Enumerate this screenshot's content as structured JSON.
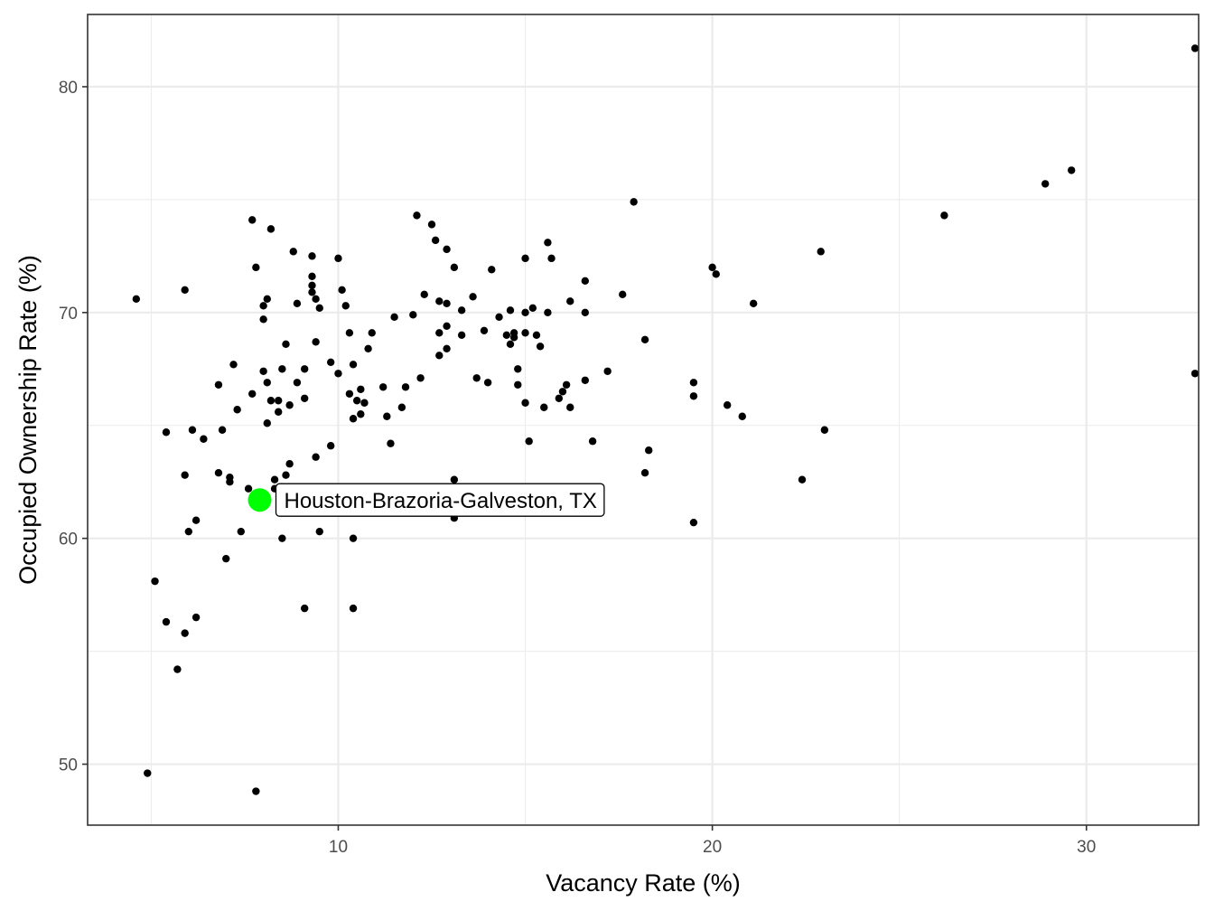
{
  "chart_data": {
    "type": "scatter",
    "xlabel": "Vacancy Rate (%)",
    "ylabel": "Occupied Ownership Rate (%)",
    "xlim": [
      3.3,
      33.0
    ],
    "ylim": [
      47.3,
      83.2
    ],
    "x_ticks": [
      10,
      20,
      30
    ],
    "y_ticks": [
      50,
      60,
      70,
      80
    ],
    "x_minor_ticks": [
      5,
      15,
      25
    ],
    "y_minor_ticks": [
      55,
      65,
      75
    ],
    "grid": true,
    "colors": {
      "point": "#000000",
      "highlight": "#00ff00",
      "grid": "#ebebeb",
      "panel_border": "#333333"
    },
    "highlight": {
      "label": "Houston-Brazoria-Galveston, TX",
      "x": 7.9,
      "y": 61.7
    },
    "points": [
      [
        4.6,
        70.6
      ],
      [
        4.9,
        49.6
      ],
      [
        5.1,
        58.1
      ],
      [
        5.4,
        56.3
      ],
      [
        5.4,
        64.7
      ],
      [
        5.7,
        54.2
      ],
      [
        5.9,
        55.8
      ],
      [
        5.9,
        62.8
      ],
      [
        5.9,
        71.0
      ],
      [
        6.0,
        60.3
      ],
      [
        6.1,
        64.8
      ],
      [
        6.2,
        60.8
      ],
      [
        6.2,
        56.5
      ],
      [
        6.4,
        64.4
      ],
      [
        6.8,
        62.9
      ],
      [
        6.8,
        66.8
      ],
      [
        6.9,
        64.8
      ],
      [
        7.0,
        59.1
      ],
      [
        7.1,
        62.7
      ],
      [
        7.1,
        62.5
      ],
      [
        7.2,
        67.7
      ],
      [
        7.3,
        65.7
      ],
      [
        7.4,
        60.3
      ],
      [
        7.6,
        62.2
      ],
      [
        7.7,
        66.4
      ],
      [
        7.7,
        74.1
      ],
      [
        7.8,
        72.0
      ],
      [
        7.8,
        48.8
      ],
      [
        8.0,
        69.7
      ],
      [
        8.0,
        70.3
      ],
      [
        8.0,
        67.4
      ],
      [
        8.1,
        70.6
      ],
      [
        8.1,
        66.9
      ],
      [
        8.1,
        65.1
      ],
      [
        8.2,
        73.7
      ],
      [
        8.2,
        66.1
      ],
      [
        8.3,
        62.6
      ],
      [
        8.3,
        62.2
      ],
      [
        8.4,
        65.6
      ],
      [
        8.4,
        66.1
      ],
      [
        8.5,
        67.5
      ],
      [
        8.5,
        60.0
      ],
      [
        8.6,
        62.8
      ],
      [
        8.6,
        68.6
      ],
      [
        8.7,
        65.9
      ],
      [
        8.7,
        63.3
      ],
      [
        8.8,
        72.7
      ],
      [
        8.9,
        70.4
      ],
      [
        8.9,
        66.9
      ],
      [
        9.1,
        67.5
      ],
      [
        9.1,
        66.2
      ],
      [
        9.1,
        56.9
      ],
      [
        9.3,
        70.9
      ],
      [
        9.3,
        71.6
      ],
      [
        9.3,
        72.5
      ],
      [
        9.3,
        71.2
      ],
      [
        9.4,
        70.6
      ],
      [
        9.4,
        68.7
      ],
      [
        9.4,
        63.6
      ],
      [
        9.5,
        70.2
      ],
      [
        9.5,
        60.3
      ],
      [
        9.8,
        67.8
      ],
      [
        9.8,
        64.1
      ],
      [
        10.0,
        72.4
      ],
      [
        10.0,
        67.3
      ],
      [
        10.1,
        71.0
      ],
      [
        10.2,
        70.3
      ],
      [
        10.3,
        69.1
      ],
      [
        10.3,
        66.4
      ],
      [
        10.4,
        67.7
      ],
      [
        10.4,
        65.3
      ],
      [
        10.4,
        60.0
      ],
      [
        10.4,
        56.9
      ],
      [
        10.5,
        66.1
      ],
      [
        10.6,
        66.6
      ],
      [
        10.6,
        65.5
      ],
      [
        10.7,
        66.0
      ],
      [
        10.8,
        68.4
      ],
      [
        10.9,
        69.1
      ],
      [
        11.2,
        66.7
      ],
      [
        11.3,
        65.4
      ],
      [
        11.4,
        64.2
      ],
      [
        11.5,
        69.8
      ],
      [
        11.7,
        65.8
      ],
      [
        11.8,
        66.7
      ],
      [
        12.0,
        69.9
      ],
      [
        12.1,
        74.3
      ],
      [
        12.2,
        67.1
      ],
      [
        12.3,
        70.8
      ],
      [
        12.5,
        73.9
      ],
      [
        12.6,
        73.2
      ],
      [
        12.7,
        70.5
      ],
      [
        12.7,
        69.1
      ],
      [
        12.7,
        68.1
      ],
      [
        12.9,
        72.8
      ],
      [
        12.9,
        70.4
      ],
      [
        12.9,
        69.4
      ],
      [
        12.9,
        68.4
      ],
      [
        13.1,
        72.0
      ],
      [
        13.1,
        62.6
      ],
      [
        13.1,
        60.9
      ],
      [
        13.3,
        70.1
      ],
      [
        13.3,
        69.0
      ],
      [
        13.6,
        70.7
      ],
      [
        13.7,
        67.1
      ],
      [
        13.9,
        69.2
      ],
      [
        14.0,
        66.9
      ],
      [
        14.1,
        71.9
      ],
      [
        14.3,
        69.8
      ],
      [
        14.5,
        69.0
      ],
      [
        14.6,
        70.1
      ],
      [
        14.6,
        68.6
      ],
      [
        14.7,
        69.1
      ],
      [
        14.7,
        68.9
      ],
      [
        14.8,
        66.8
      ],
      [
        14.8,
        67.5
      ],
      [
        15.0,
        72.4
      ],
      [
        15.0,
        70.0
      ],
      [
        15.0,
        69.1
      ],
      [
        15.0,
        66.0
      ],
      [
        15.1,
        64.3
      ],
      [
        15.2,
        70.2
      ],
      [
        15.3,
        69.0
      ],
      [
        15.4,
        68.5
      ],
      [
        15.5,
        65.8
      ],
      [
        15.6,
        70.0
      ],
      [
        15.6,
        73.1
      ],
      [
        15.7,
        72.4
      ],
      [
        15.9,
        66.2
      ],
      [
        16.0,
        66.5
      ],
      [
        16.1,
        66.8
      ],
      [
        16.2,
        70.5
      ],
      [
        16.2,
        65.8
      ],
      [
        16.6,
        71.4
      ],
      [
        16.6,
        70.0
      ],
      [
        16.6,
        67.0
      ],
      [
        16.8,
        64.3
      ],
      [
        17.2,
        67.4
      ],
      [
        17.6,
        70.8
      ],
      [
        17.9,
        74.9
      ],
      [
        18.2,
        68.8
      ],
      [
        18.2,
        62.9
      ],
      [
        18.3,
        63.9
      ],
      [
        19.5,
        66.9
      ],
      [
        19.5,
        66.3
      ],
      [
        19.5,
        60.7
      ],
      [
        20.0,
        72.0
      ],
      [
        20.1,
        71.7
      ],
      [
        20.4,
        65.9
      ],
      [
        20.8,
        65.4
      ],
      [
        21.1,
        70.4
      ],
      [
        22.4,
        62.6
      ],
      [
        22.9,
        72.7
      ],
      [
        23.0,
        64.8
      ],
      [
        26.2,
        74.3
      ],
      [
        28.9,
        75.7
      ],
      [
        29.6,
        76.3
      ],
      [
        33.2,
        67.3
      ],
      [
        36.2,
        81.7
      ]
    ]
  }
}
